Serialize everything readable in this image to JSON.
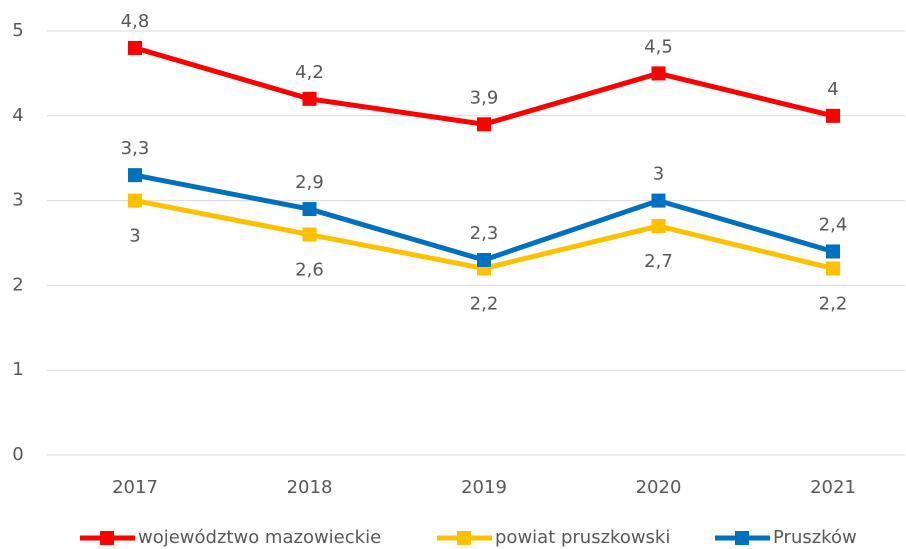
{
  "chart_data": {
    "type": "line",
    "categories": [
      "2017",
      "2018",
      "2019",
      "2020",
      "2021"
    ],
    "series": [
      {
        "name": "województwo mazowieckie",
        "color": "#ff0000",
        "values": [
          4.8,
          4.2,
          3.9,
          4.5,
          4
        ],
        "value_labels": [
          "4,8",
          "4,2",
          "3,9",
          "4,5",
          "4"
        ]
      },
      {
        "name": "powiat pruszkowski",
        "color": "#ffc000",
        "values": [
          3,
          2.6,
          2.2,
          2.7,
          2.2
        ],
        "value_labels": [
          "3",
          "2,6",
          "2,2",
          "2,7",
          "2,2"
        ]
      },
      {
        "name": "Pruszków",
        "color": "#0070c0",
        "values": [
          3.3,
          2.9,
          2.3,
          3,
          2.4
        ],
        "value_labels": [
          "3,3",
          "2,9",
          "2,3",
          "3",
          "2,4"
        ]
      }
    ],
    "ylim": [
      0,
      5
    ],
    "yticks": [
      0,
      1,
      2,
      3,
      4,
      5
    ],
    "grid": true,
    "legend": "bottom"
  }
}
